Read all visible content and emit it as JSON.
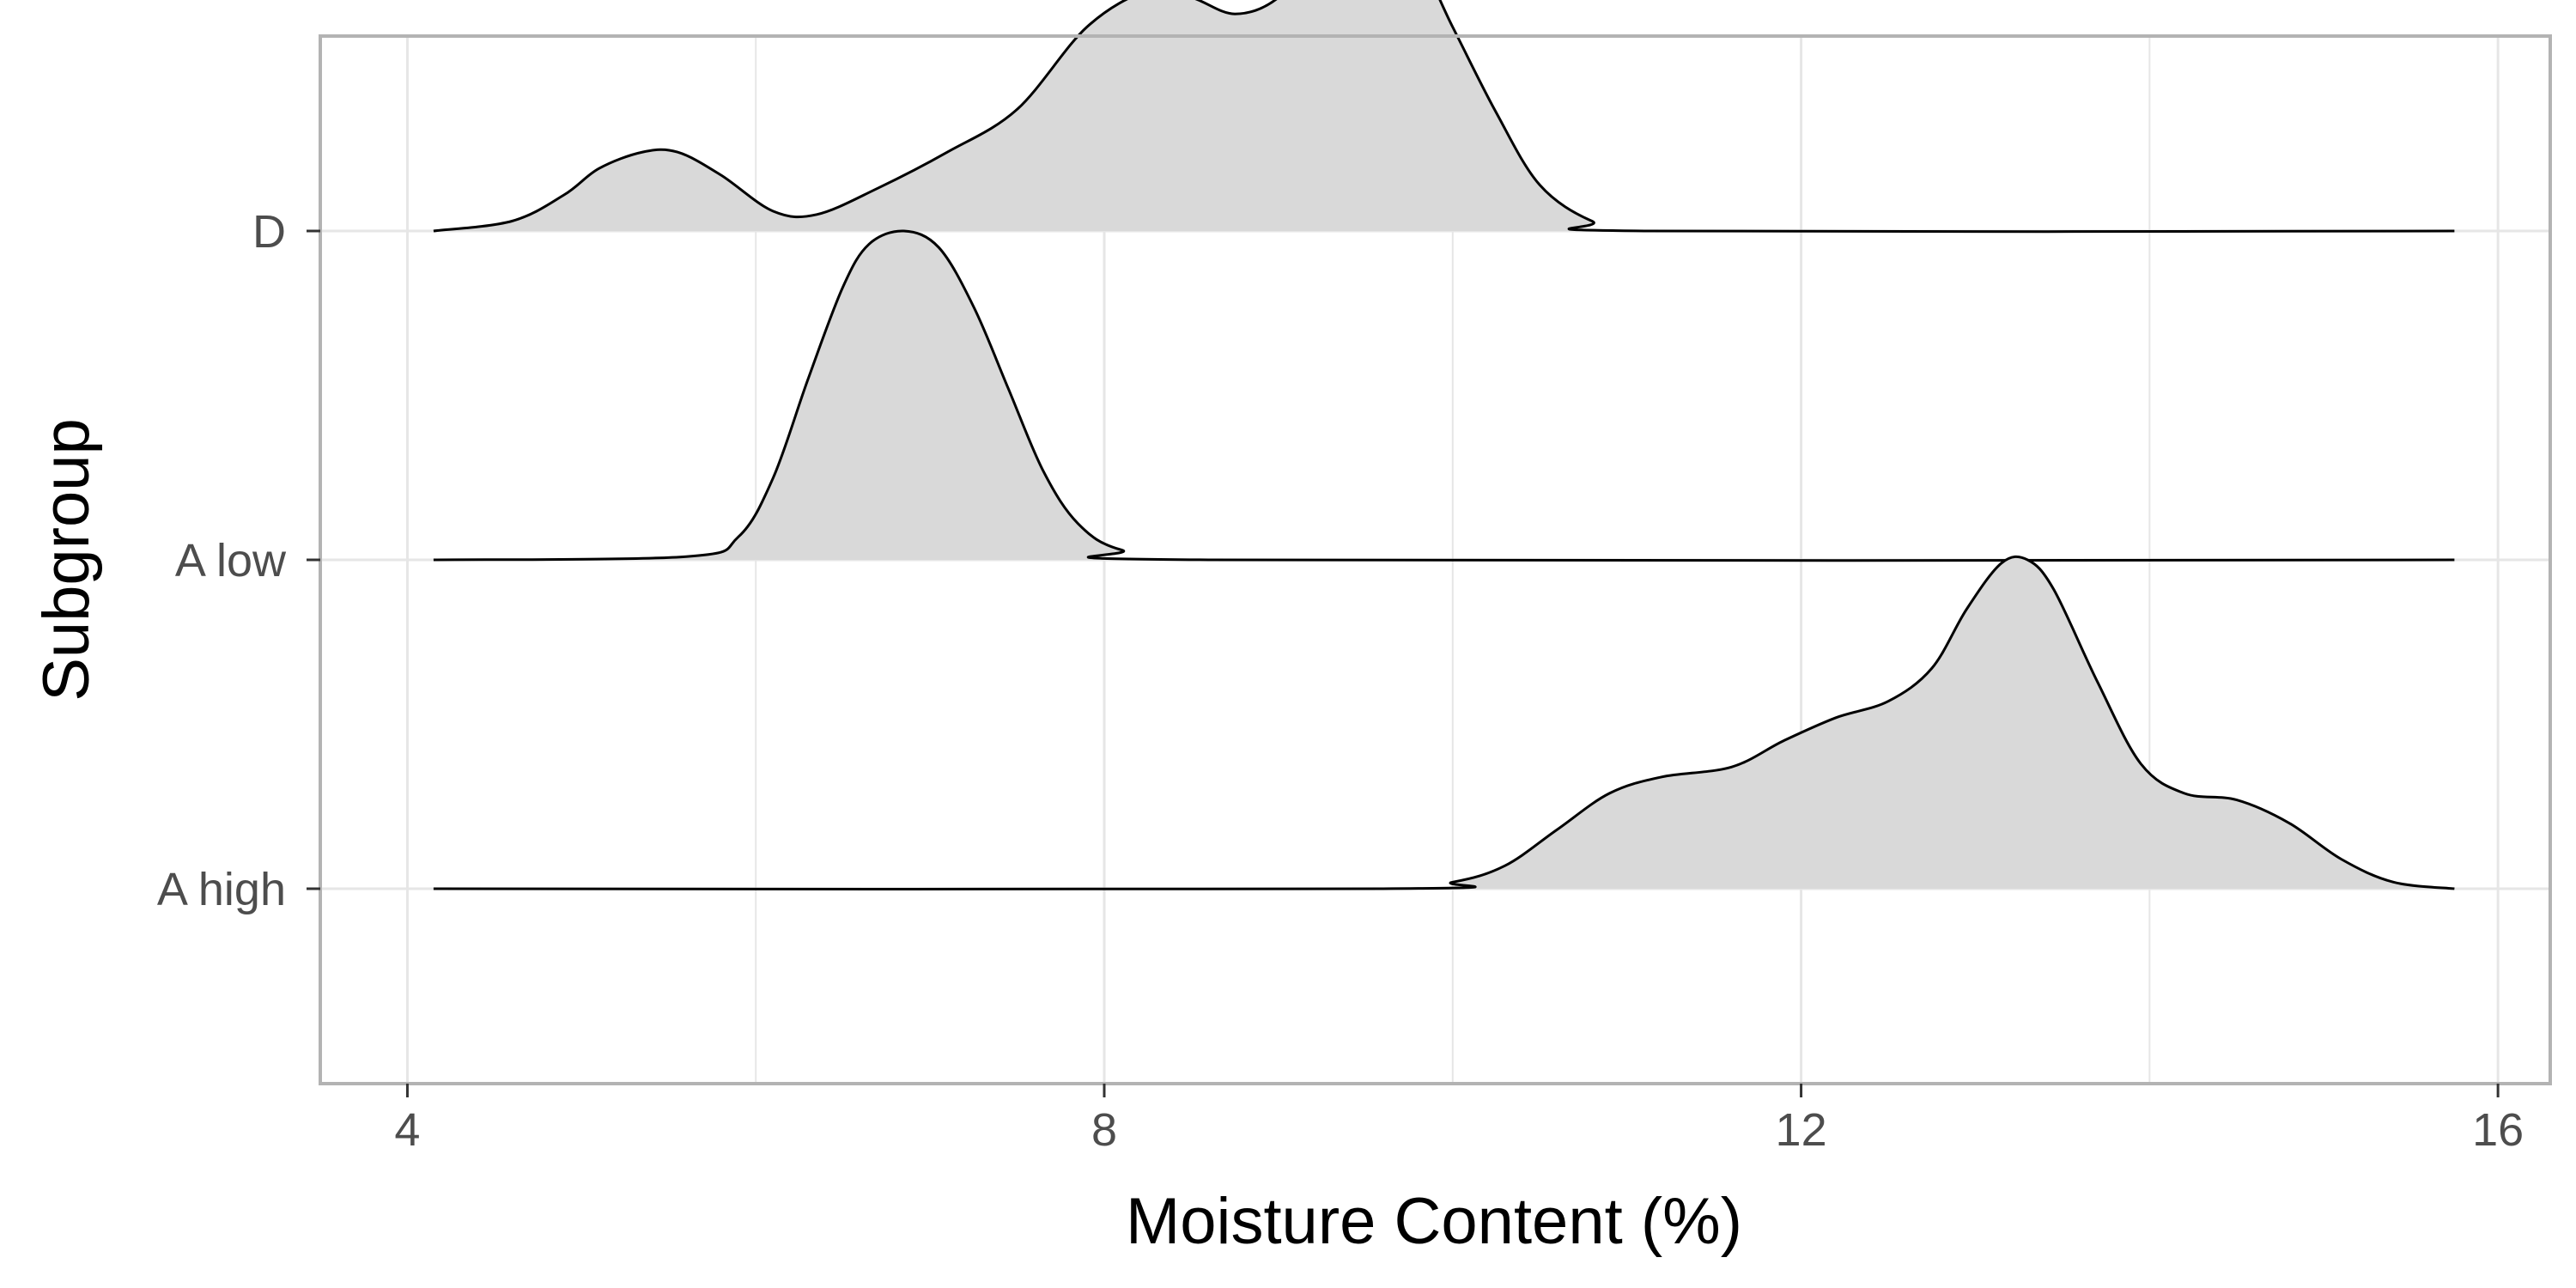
{
  "chart_data": {
    "type": "ridgeline",
    "title": "",
    "xlabel": "Moisture Content (%)",
    "ylabel": "Subgroup",
    "xlim": [
      3.5,
      16.3
    ],
    "x_ticks": [
      4,
      8,
      12,
      16
    ],
    "x_minor_ticks": [
      6,
      10,
      14
    ],
    "grid": true,
    "legend": "none",
    "categories": [
      "A high",
      "A low",
      "D"
    ],
    "fill_color": "#d9d9d9",
    "line_color": "#000000",
    "grid_color": "#e6e6e6",
    "series": [
      {
        "name": "D",
        "points": [
          [
            4.15,
            0.0
          ],
          [
            4.6,
            0.03
          ],
          [
            4.9,
            0.11
          ],
          [
            5.1,
            0.19
          ],
          [
            5.35,
            0.24
          ],
          [
            5.55,
            0.24
          ],
          [
            5.8,
            0.17
          ],
          [
            6.1,
            0.06
          ],
          [
            6.35,
            0.05
          ],
          [
            6.7,
            0.13
          ],
          [
            7.1,
            0.24
          ],
          [
            7.5,
            0.37
          ],
          [
            7.9,
            0.62
          ],
          [
            8.25,
            0.73
          ],
          [
            8.5,
            0.71
          ],
          [
            8.75,
            0.66
          ],
          [
            9.0,
            0.71
          ],
          [
            9.25,
            0.87
          ],
          [
            9.5,
            0.93
          ],
          [
            9.75,
            0.88
          ],
          [
            10.0,
            0.62
          ],
          [
            10.25,
            0.36
          ],
          [
            10.5,
            0.14
          ],
          [
            10.8,
            0.03
          ],
          [
            11.1,
            0.0
          ],
          [
            15.75,
            0.0
          ]
        ]
      },
      {
        "name": "A low",
        "points": [
          [
            4.15,
            0.0
          ],
          [
            5.6,
            0.01
          ],
          [
            5.9,
            0.07
          ],
          [
            6.1,
            0.25
          ],
          [
            6.3,
            0.55
          ],
          [
            6.5,
            0.83
          ],
          [
            6.65,
            0.96
          ],
          [
            6.85,
            1.0
          ],
          [
            7.05,
            0.95
          ],
          [
            7.25,
            0.77
          ],
          [
            7.45,
            0.52
          ],
          [
            7.65,
            0.27
          ],
          [
            7.85,
            0.11
          ],
          [
            8.1,
            0.03
          ],
          [
            8.6,
            0.0
          ],
          [
            15.75,
            0.0
          ]
        ]
      },
      {
        "name": "A high",
        "points": [
          [
            4.15,
            0.0
          ],
          [
            9.6,
            0.0
          ],
          [
            10.0,
            0.02
          ],
          [
            10.3,
            0.07
          ],
          [
            10.6,
            0.18
          ],
          [
            10.9,
            0.29
          ],
          [
            11.2,
            0.34
          ],
          [
            11.6,
            0.37
          ],
          [
            11.9,
            0.45
          ],
          [
            12.2,
            0.52
          ],
          [
            12.5,
            0.57
          ],
          [
            12.75,
            0.67
          ],
          [
            12.95,
            0.85
          ],
          [
            13.15,
            0.99
          ],
          [
            13.3,
            1.0
          ],
          [
            13.45,
            0.91
          ],
          [
            13.7,
            0.63
          ],
          [
            13.95,
            0.38
          ],
          [
            14.2,
            0.29
          ],
          [
            14.5,
            0.27
          ],
          [
            14.8,
            0.2
          ],
          [
            15.1,
            0.09
          ],
          [
            15.4,
            0.02
          ],
          [
            15.75,
            0.0
          ]
        ]
      }
    ]
  }
}
